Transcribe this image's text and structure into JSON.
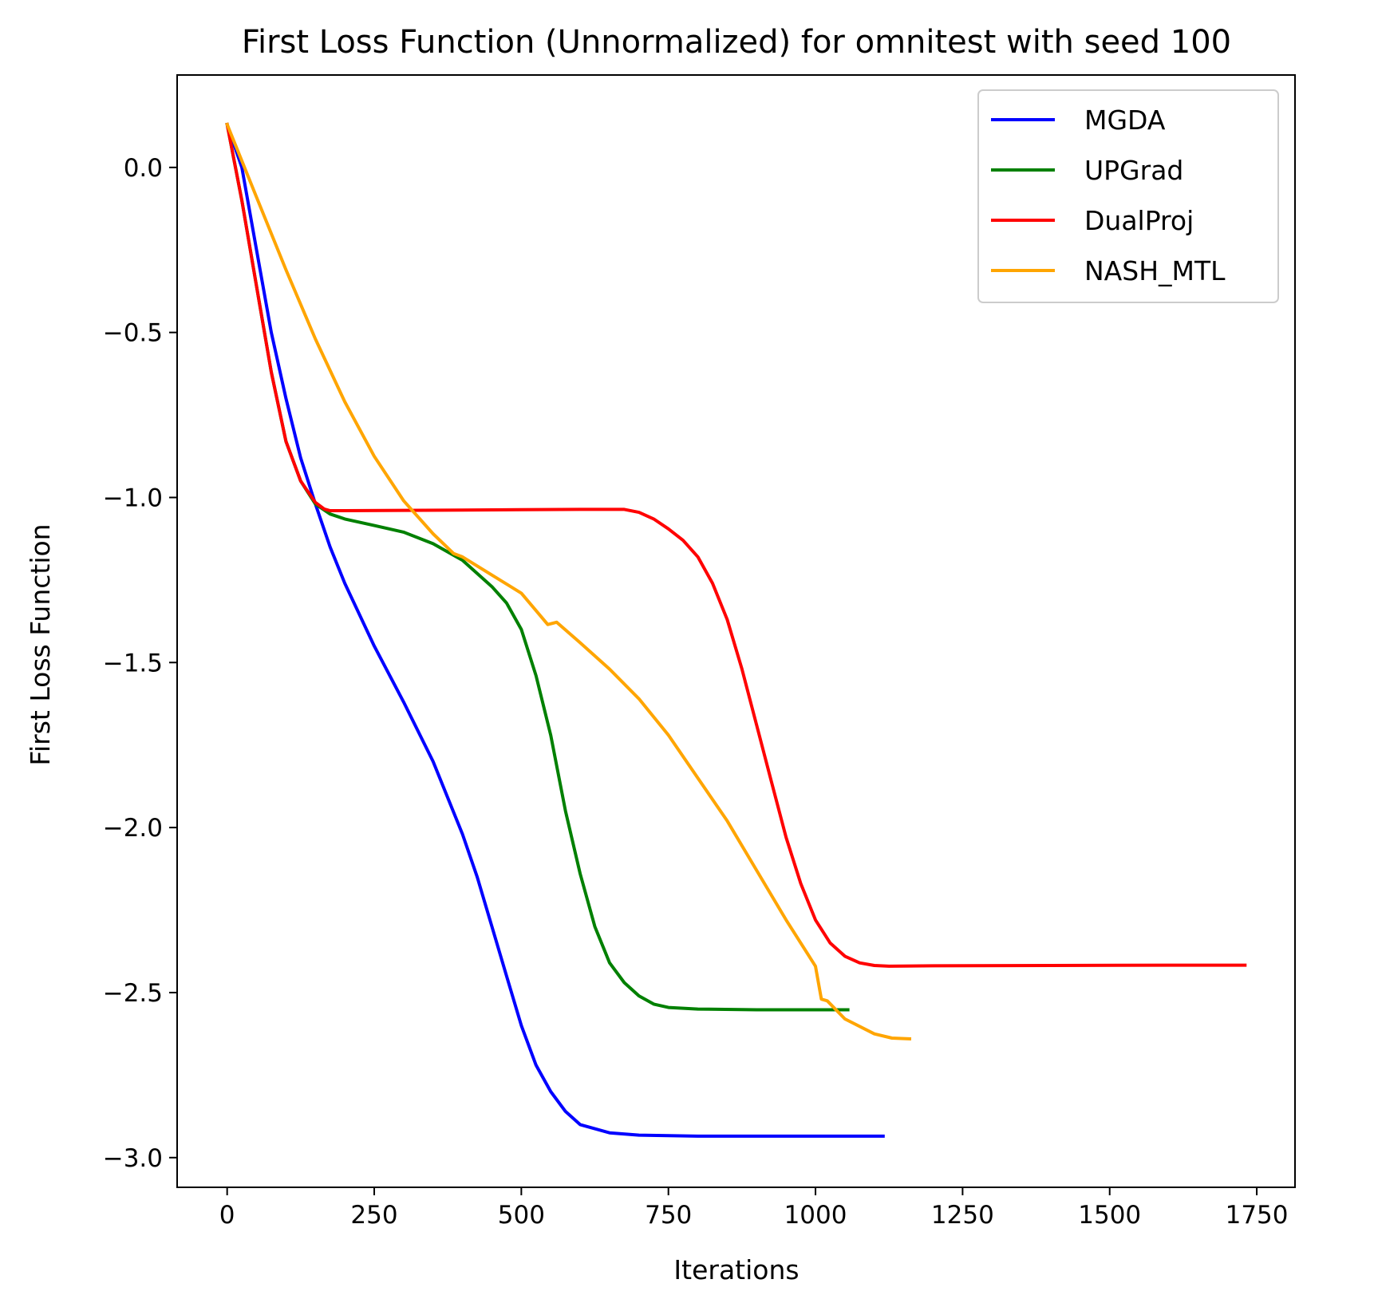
{
  "chart_data": {
    "type": "line",
    "title": "First Loss Function (Unnormalized) for omnitest with seed 100",
    "xlabel": "Iterations",
    "ylabel": "First Loss Function",
    "xlim": [
      -85,
      1815
    ],
    "ylim": [
      -3.09,
      0.28
    ],
    "xticks": [
      0,
      250,
      500,
      750,
      1000,
      1250,
      1500,
      1750
    ],
    "xtick_labels": [
      "0",
      "250",
      "500",
      "750",
      "1000",
      "1250",
      "1500",
      "1750"
    ],
    "yticks": [
      0.0,
      -0.5,
      -1.0,
      -1.5,
      -2.0,
      -2.5,
      -3.0
    ],
    "ytick_labels": [
      "0.0",
      "−0.5",
      "−1.0",
      "−1.5",
      "−2.0",
      "−2.5",
      "−3.0"
    ],
    "grid": false,
    "legend_position": "top-right",
    "series": [
      {
        "name": "MGDA",
        "color": "#0000ff",
        "points": [
          [
            0,
            0.13
          ],
          [
            25,
            0.0
          ],
          [
            50,
            -0.25
          ],
          [
            75,
            -0.5
          ],
          [
            100,
            -0.7
          ],
          [
            125,
            -0.88
          ],
          [
            150,
            -1.02
          ],
          [
            175,
            -1.15
          ],
          [
            200,
            -1.26
          ],
          [
            250,
            -1.45
          ],
          [
            300,
            -1.62
          ],
          [
            350,
            -1.8
          ],
          [
            400,
            -2.02
          ],
          [
            425,
            -2.15
          ],
          [
            450,
            -2.3
          ],
          [
            475,
            -2.45
          ],
          [
            500,
            -2.6
          ],
          [
            525,
            -2.72
          ],
          [
            550,
            -2.8
          ],
          [
            575,
            -2.86
          ],
          [
            600,
            -2.9
          ],
          [
            650,
            -2.925
          ],
          [
            700,
            -2.932
          ],
          [
            800,
            -2.935
          ],
          [
            900,
            -2.935
          ],
          [
            1000,
            -2.935
          ],
          [
            1115,
            -2.935
          ]
        ]
      },
      {
        "name": "UPGrad",
        "color": "#008000",
        "points": [
          [
            0,
            0.13
          ],
          [
            25,
            -0.1
          ],
          [
            50,
            -0.36
          ],
          [
            75,
            -0.62
          ],
          [
            100,
            -0.83
          ],
          [
            125,
            -0.95
          ],
          [
            150,
            -1.02
          ],
          [
            175,
            -1.05
          ],
          [
            200,
            -1.065
          ],
          [
            250,
            -1.085
          ],
          [
            300,
            -1.105
          ],
          [
            350,
            -1.14
          ],
          [
            400,
            -1.19
          ],
          [
            450,
            -1.27
          ],
          [
            475,
            -1.32
          ],
          [
            500,
            -1.4
          ],
          [
            525,
            -1.54
          ],
          [
            550,
            -1.72
          ],
          [
            575,
            -1.95
          ],
          [
            600,
            -2.14
          ],
          [
            625,
            -2.3
          ],
          [
            650,
            -2.41
          ],
          [
            675,
            -2.47
          ],
          [
            700,
            -2.51
          ],
          [
            725,
            -2.535
          ],
          [
            750,
            -2.545
          ],
          [
            800,
            -2.55
          ],
          [
            900,
            -2.552
          ],
          [
            1000,
            -2.552
          ],
          [
            1055,
            -2.552
          ]
        ]
      },
      {
        "name": "DualProj",
        "color": "#ff0000",
        "points": [
          [
            0,
            0.13
          ],
          [
            25,
            -0.1
          ],
          [
            50,
            -0.36
          ],
          [
            75,
            -0.62
          ],
          [
            100,
            -0.83
          ],
          [
            125,
            -0.95
          ],
          [
            150,
            -1.015
          ],
          [
            165,
            -1.035
          ],
          [
            175,
            -1.04
          ],
          [
            200,
            -1.04
          ],
          [
            300,
            -1.039
          ],
          [
            400,
            -1.038
          ],
          [
            500,
            -1.037
          ],
          [
            600,
            -1.036
          ],
          [
            675,
            -1.036
          ],
          [
            700,
            -1.045
          ],
          [
            725,
            -1.065
          ],
          [
            750,
            -1.095
          ],
          [
            775,
            -1.13
          ],
          [
            800,
            -1.18
          ],
          [
            825,
            -1.26
          ],
          [
            850,
            -1.37
          ],
          [
            875,
            -1.52
          ],
          [
            900,
            -1.69
          ],
          [
            925,
            -1.86
          ],
          [
            950,
            -2.03
          ],
          [
            975,
            -2.17
          ],
          [
            1000,
            -2.28
          ],
          [
            1025,
            -2.35
          ],
          [
            1050,
            -2.39
          ],
          [
            1075,
            -2.41
          ],
          [
            1100,
            -2.418
          ],
          [
            1125,
            -2.42
          ],
          [
            1200,
            -2.419
          ],
          [
            1400,
            -2.418
          ],
          [
            1600,
            -2.417
          ],
          [
            1730,
            -2.417
          ]
        ]
      },
      {
        "name": "NASH_MTL",
        "color": "#ffa500",
        "points": [
          [
            0,
            0.13
          ],
          [
            50,
            -0.09
          ],
          [
            100,
            -0.31
          ],
          [
            150,
            -0.52
          ],
          [
            200,
            -0.71
          ],
          [
            250,
            -0.875
          ],
          [
            300,
            -1.01
          ],
          [
            350,
            -1.11
          ],
          [
            385,
            -1.17
          ],
          [
            400,
            -1.18
          ],
          [
            450,
            -1.235
          ],
          [
            500,
            -1.29
          ],
          [
            545,
            -1.385
          ],
          [
            560,
            -1.378
          ],
          [
            600,
            -1.44
          ],
          [
            650,
            -1.52
          ],
          [
            700,
            -1.61
          ],
          [
            750,
            -1.72
          ],
          [
            800,
            -1.85
          ],
          [
            850,
            -1.98
          ],
          [
            900,
            -2.13
          ],
          [
            950,
            -2.28
          ],
          [
            1000,
            -2.42
          ],
          [
            1010,
            -2.52
          ],
          [
            1020,
            -2.525
          ],
          [
            1050,
            -2.58
          ],
          [
            1100,
            -2.625
          ],
          [
            1130,
            -2.638
          ],
          [
            1160,
            -2.64
          ]
        ]
      }
    ]
  }
}
